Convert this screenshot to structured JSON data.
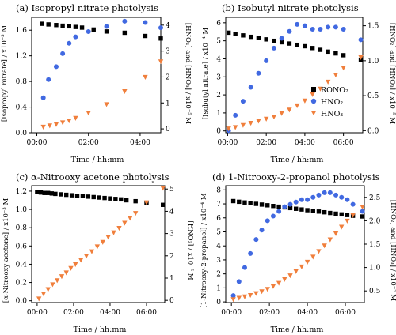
{
  "chart_data": [
    {
      "type": "scatter",
      "title": "(a) Isopropyl nitrate photolysis",
      "xlabel": "Time / hh:mm",
      "ylabel_left": "[Isopropyl nitrate] / x10⁻³ M",
      "ylabel_right": "[HNO₂] and [HNO₃] / x10⁻⁵ M",
      "xlim": [
        -0.2,
        4.8
      ],
      "xticks": [
        0,
        2,
        4
      ],
      "xtick_labels": [
        "00:00",
        "02:00",
        "04:00"
      ],
      "ylim_left": [
        0.0,
        1.8
      ],
      "yticks_left": [
        0.0,
        0.4,
        0.8,
        1.2,
        1.6
      ],
      "ytick_labels_left": [
        "0.0",
        "0.4",
        "0.8",
        "1.2",
        "1.6"
      ],
      "ylim_right": [
        -0.15,
        4.3
      ],
      "yticks_right": [
        0,
        1,
        2,
        3,
        4
      ],
      "ytick_labels_right": [
        "0",
        "1",
        "2",
        "3",
        "4"
      ],
      "series": [
        {
          "name": "RONO₂",
          "axis": "left",
          "color": "#000000",
          "marker": "square",
          "x": [
            0.2,
            0.45,
            0.75,
            1.0,
            1.25,
            1.5,
            1.75,
            2.2,
            2.7,
            3.4,
            4.2,
            4.8
          ],
          "y": [
            1.7,
            1.69,
            1.68,
            1.67,
            1.66,
            1.65,
            1.64,
            1.61,
            1.58,
            1.56,
            1.51,
            1.47
          ]
        },
        {
          "name": "HNO₂",
          "axis": "right",
          "color": "#4169E1",
          "marker": "circle",
          "x": [
            0.25,
            0.45,
            0.75,
            1.0,
            1.25,
            1.5,
            2.0,
            2.7,
            3.4,
            4.2,
            4.8
          ],
          "y": [
            1.2,
            1.9,
            2.4,
            2.9,
            3.3,
            3.55,
            3.75,
            3.95,
            4.15,
            4.1,
            3.9
          ]
        },
        {
          "name": "HNO₃",
          "axis": "right",
          "color": "#F07F3C",
          "marker": "triangle-down",
          "x": [
            0.25,
            0.5,
            0.75,
            1.0,
            1.25,
            1.5,
            2.0,
            2.7,
            3.4,
            4.2,
            4.8
          ],
          "y": [
            0.08,
            0.13,
            0.18,
            0.25,
            0.32,
            0.42,
            0.62,
            0.95,
            1.45,
            2.0,
            2.6
          ]
        }
      ]
    },
    {
      "type": "scatter",
      "title": "(b) Isobutyl nitrate photolysis",
      "xlabel": "Time / hh:mm",
      "ylabel_left": "[Isobutyl nitrate] / x10⁻⁴ M",
      "ylabel_right": "[HNO₂] and [HNO₃] / x10⁻⁵ M",
      "xlim": [
        -0.1,
        7.0
      ],
      "xticks": [
        0,
        2,
        4,
        6
      ],
      "xtick_labels": [
        "00:00",
        "02:00",
        "04:00",
        "06:00"
      ],
      "ylim_left": [
        -0.1,
        6.3
      ],
      "yticks_left": [
        0,
        1,
        2,
        3,
        4,
        5,
        6
      ],
      "ytick_labels_left": [
        "0",
        "1",
        "2",
        "3",
        "4",
        "5",
        "6"
      ],
      "ylim_right": [
        -0.03,
        1.62
      ],
      "yticks_right": [
        0.0,
        0.5,
        1.0,
        1.5
      ],
      "ytick_labels_right": [
        "0.0",
        "0.5",
        "1.0",
        "1.5"
      ],
      "legend": {
        "position": "right",
        "entries": [
          "RONO₂",
          "HNO₂",
          "HNO₃"
        ]
      },
      "series": [
        {
          "name": "RONO₂",
          "axis": "left",
          "color": "#000000",
          "marker": "square",
          "x": [
            0.05,
            0.4,
            0.8,
            1.2,
            1.6,
            2.0,
            2.4,
            2.8,
            3.2,
            3.6,
            4.0,
            4.4,
            4.8,
            5.2,
            5.6,
            6.0,
            6.9
          ],
          "y": [
            5.45,
            5.38,
            5.3,
            5.22,
            5.15,
            5.08,
            5.0,
            4.92,
            4.85,
            4.78,
            4.7,
            4.6,
            4.5,
            4.4,
            4.3,
            4.2,
            3.95
          ]
        },
        {
          "name": "HNO₂",
          "axis": "right",
          "color": "#4169E1",
          "marker": "circle",
          "x": [
            0.05,
            0.4,
            0.8,
            1.2,
            1.6,
            2.0,
            2.4,
            2.8,
            3.2,
            3.6,
            4.0,
            4.4,
            4.8,
            5.2,
            5.6,
            6.0,
            6.9
          ],
          "y": [
            0.0,
            0.22,
            0.42,
            0.62,
            0.82,
            1.0,
            1.18,
            1.32,
            1.42,
            1.52,
            1.5,
            1.45,
            1.45,
            1.48,
            1.48,
            1.45,
            1.3
          ]
        },
        {
          "name": "HNO₃",
          "axis": "right",
          "color": "#F07F3C",
          "marker": "triangle-down",
          "x": [
            0.05,
            0.4,
            0.8,
            1.2,
            1.6,
            2.0,
            2.4,
            2.8,
            3.2,
            3.6,
            4.0,
            4.4,
            4.8,
            5.2,
            5.6,
            6.0,
            6.9
          ],
          "y": [
            0.03,
            0.05,
            0.08,
            0.11,
            0.14,
            0.17,
            0.2,
            0.25,
            0.3,
            0.36,
            0.43,
            0.52,
            0.6,
            0.7,
            0.8,
            0.9,
            1.05
          ]
        }
      ]
    },
    {
      "type": "scatter",
      "title": "(c) α-Nitrooxy acetone photolysis",
      "xlabel": "Time / hh:mm",
      "ylabel_left": "[α-Nitrooxy acetone] / x10⁻³ M",
      "ylabel_right": "[HNO₃] / x10⁻⁵ M",
      "xlim": [
        -0.3,
        7.0
      ],
      "xticks": [
        0,
        2,
        4,
        6
      ],
      "xtick_labels": [
        "00:00",
        "02:00",
        "04:00",
        "06:00"
      ],
      "ylim_left": [
        -0.02,
        1.26
      ],
      "yticks_left": [
        0.0,
        0.2,
        0.4,
        0.6,
        0.8,
        1.0,
        1.2
      ],
      "ytick_labels_left": [
        "0.0",
        "0.2",
        "0.4",
        "0.6",
        "0.8",
        "1.0",
        "1.2"
      ],
      "ylim_right": [
        -0.1,
        5.15
      ],
      "yticks_right": [
        0,
        1,
        2,
        3,
        4,
        5
      ],
      "ytick_labels_right": [
        "0",
        "1",
        "2",
        "3",
        "4",
        "5"
      ],
      "series": [
        {
          "name": "RONO₂",
          "axis": "left",
          "color": "#000000",
          "marker": "square",
          "x": [
            0.0,
            0.2,
            0.4,
            0.6,
            0.8,
            1.0,
            1.3,
            1.6,
            1.9,
            2.2,
            2.5,
            2.8,
            3.1,
            3.4,
            3.7,
            4.0,
            4.3,
            4.6,
            4.9,
            5.4,
            6.0,
            6.9
          ],
          "y": [
            1.19,
            1.185,
            1.18,
            1.18,
            1.175,
            1.17,
            1.165,
            1.16,
            1.155,
            1.15,
            1.145,
            1.14,
            1.135,
            1.13,
            1.125,
            1.12,
            1.115,
            1.11,
            1.1,
            1.09,
            1.07,
            1.05
          ]
        },
        {
          "name": "HNO₃",
          "axis": "right",
          "color": "#F07F3C",
          "marker": "triangle-down",
          "x": [
            0.1,
            0.35,
            0.6,
            0.85,
            1.1,
            1.35,
            1.6,
            1.85,
            2.1,
            2.4,
            2.7,
            3.0,
            3.3,
            3.6,
            3.9,
            4.2,
            4.5,
            4.8,
            5.1,
            5.4,
            6.0,
            6.9
          ],
          "y": [
            0.08,
            0.3,
            0.5,
            0.72,
            0.9,
            1.08,
            1.25,
            1.45,
            1.62,
            1.82,
            2.0,
            2.2,
            2.42,
            2.62,
            2.85,
            3.05,
            3.25,
            3.48,
            3.7,
            3.92,
            4.4,
            5.05
          ]
        }
      ]
    },
    {
      "type": "scatter",
      "title": "(d) 1-Nitrooxy-2-propanol photolysis",
      "xlabel": "Time / hh:mm",
      "ylabel_left": "[1-Nitrooxy-2-propanol] / x10⁻⁴ M",
      "ylabel_right": "[HNO₂] and [HNO₃] / x10⁻⁵ M",
      "xlim": [
        -0.3,
        7.0
      ],
      "xticks": [
        0,
        2,
        4,
        6
      ],
      "xtick_labels": [
        "00:00",
        "02:00",
        "04:00",
        "06:00"
      ],
      "ylim_left": [
        -0.05,
        8.3
      ],
      "yticks_left": [
        0,
        1,
        2,
        3,
        4,
        5,
        6,
        7,
        8
      ],
      "ytick_labels_left": [
        "0",
        "1",
        "2",
        "3",
        "4",
        "5",
        "6",
        "7",
        "8"
      ],
      "ylim_right": [
        0.25,
        2.75
      ],
      "yticks_right": [
        0.5,
        1.0,
        1.5,
        2.0,
        2.5
      ],
      "ytick_labels_right": [
        "0.5",
        "1.0",
        "1.5",
        "2.0",
        "2.5"
      ],
      "series": [
        {
          "name": "RONO₂",
          "axis": "left",
          "color": "#000000",
          "marker": "square",
          "x": [
            0.1,
            0.4,
            0.7,
            1.0,
            1.3,
            1.6,
            1.9,
            2.2,
            2.5,
            2.8,
            3.1,
            3.4,
            3.7,
            4.0,
            4.3,
            4.6,
            4.9,
            5.2,
            5.5,
            5.8,
            6.1,
            6.4,
            6.9
          ],
          "y": [
            7.2,
            7.15,
            7.1,
            7.05,
            7.0,
            6.95,
            6.9,
            6.85,
            6.8,
            6.75,
            6.7,
            6.65,
            6.6,
            6.55,
            6.5,
            6.45,
            6.4,
            6.35,
            6.3,
            6.25,
            6.2,
            6.15,
            6.1
          ]
        },
        {
          "name": "HNO₂",
          "axis": "right",
          "color": "#4169E1",
          "marker": "circle",
          "x": [
            0.1,
            0.4,
            0.7,
            1.0,
            1.3,
            1.6,
            1.9,
            2.2,
            2.5,
            2.8,
            3.1,
            3.4,
            3.7,
            4.0,
            4.3,
            4.6,
            4.9,
            5.2,
            5.5,
            5.8,
            6.1,
            6.4,
            6.9
          ],
          "y": [
            0.4,
            0.7,
            1.0,
            1.3,
            1.6,
            1.8,
            2.0,
            2.1,
            2.2,
            2.3,
            2.35,
            2.4,
            2.45,
            2.45,
            2.5,
            2.55,
            2.6,
            2.6,
            2.55,
            2.5,
            2.45,
            2.35,
            2.2
          ]
        },
        {
          "name": "HNO₃",
          "axis": "right",
          "color": "#F07F3C",
          "marker": "triangle-down",
          "x": [
            0.1,
            0.4,
            0.7,
            1.0,
            1.3,
            1.6,
            1.9,
            2.2,
            2.5,
            2.8,
            3.1,
            3.4,
            3.7,
            4.0,
            4.3,
            4.6,
            4.9,
            5.2,
            5.5,
            5.8,
            6.1,
            6.4,
            6.9
          ],
          "y": [
            0.32,
            0.35,
            0.38,
            0.41,
            0.45,
            0.49,
            0.54,
            0.6,
            0.67,
            0.75,
            0.83,
            0.92,
            1.02,
            1.12,
            1.23,
            1.35,
            1.47,
            1.6,
            1.73,
            1.87,
            2.0,
            2.12,
            2.3
          ]
        }
      ]
    }
  ]
}
